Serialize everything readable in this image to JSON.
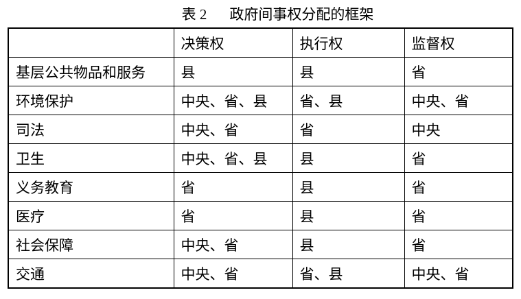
{
  "page": {
    "background": "#ffffff",
    "text_color": "#000000",
    "border_color": "#000000"
  },
  "title": {
    "label": "表 2",
    "text": "政府间事权分配的框架"
  },
  "table": {
    "headers": [
      "",
      "决策权",
      "执行权",
      "监督权"
    ],
    "rows": [
      {
        "category": "基层公共物品和服务",
        "decision": "县",
        "execution": "县",
        "supervision": "省"
      },
      {
        "category": "环境保护",
        "decision": "中央、省、县",
        "execution": "省、县",
        "supervision": "中央、省"
      },
      {
        "category": "司法",
        "decision": "中央、省",
        "execution": "省",
        "supervision": "中央"
      },
      {
        "category": "卫生",
        "decision": "中央、省、县",
        "execution": "县",
        "supervision": "省"
      },
      {
        "category": "义务教育",
        "decision": "省",
        "execution": "县",
        "supervision": "省"
      },
      {
        "category": "医疗",
        "decision": "省",
        "execution": "县",
        "supervision": "省"
      },
      {
        "category": "社会保障",
        "decision": "中央、省",
        "execution": "县",
        "supervision": "省"
      },
      {
        "category": "交通",
        "decision": "中央、省",
        "execution": "省、县",
        "supervision": "中央、省"
      }
    ]
  },
  "chart_data": {
    "type": "table",
    "title": "表 2 政府间事权分配的框架",
    "columns": [
      "",
      "决策权",
      "执行权",
      "监督权"
    ],
    "rows": [
      [
        "基层公共物品和服务",
        "县",
        "县",
        "省"
      ],
      [
        "环境保护",
        "中央、省、县",
        "省、县",
        "中央、省"
      ],
      [
        "司法",
        "中央、省",
        "省",
        "中央"
      ],
      [
        "卫生",
        "中央、省、县",
        "县",
        "省"
      ],
      [
        "义务教育",
        "省",
        "县",
        "省"
      ],
      [
        "医疗",
        "省",
        "县",
        "省"
      ],
      [
        "社会保障",
        "中央、省",
        "县",
        "省"
      ],
      [
        "交通",
        "中央、省",
        "省、县",
        "中央、省"
      ]
    ]
  }
}
